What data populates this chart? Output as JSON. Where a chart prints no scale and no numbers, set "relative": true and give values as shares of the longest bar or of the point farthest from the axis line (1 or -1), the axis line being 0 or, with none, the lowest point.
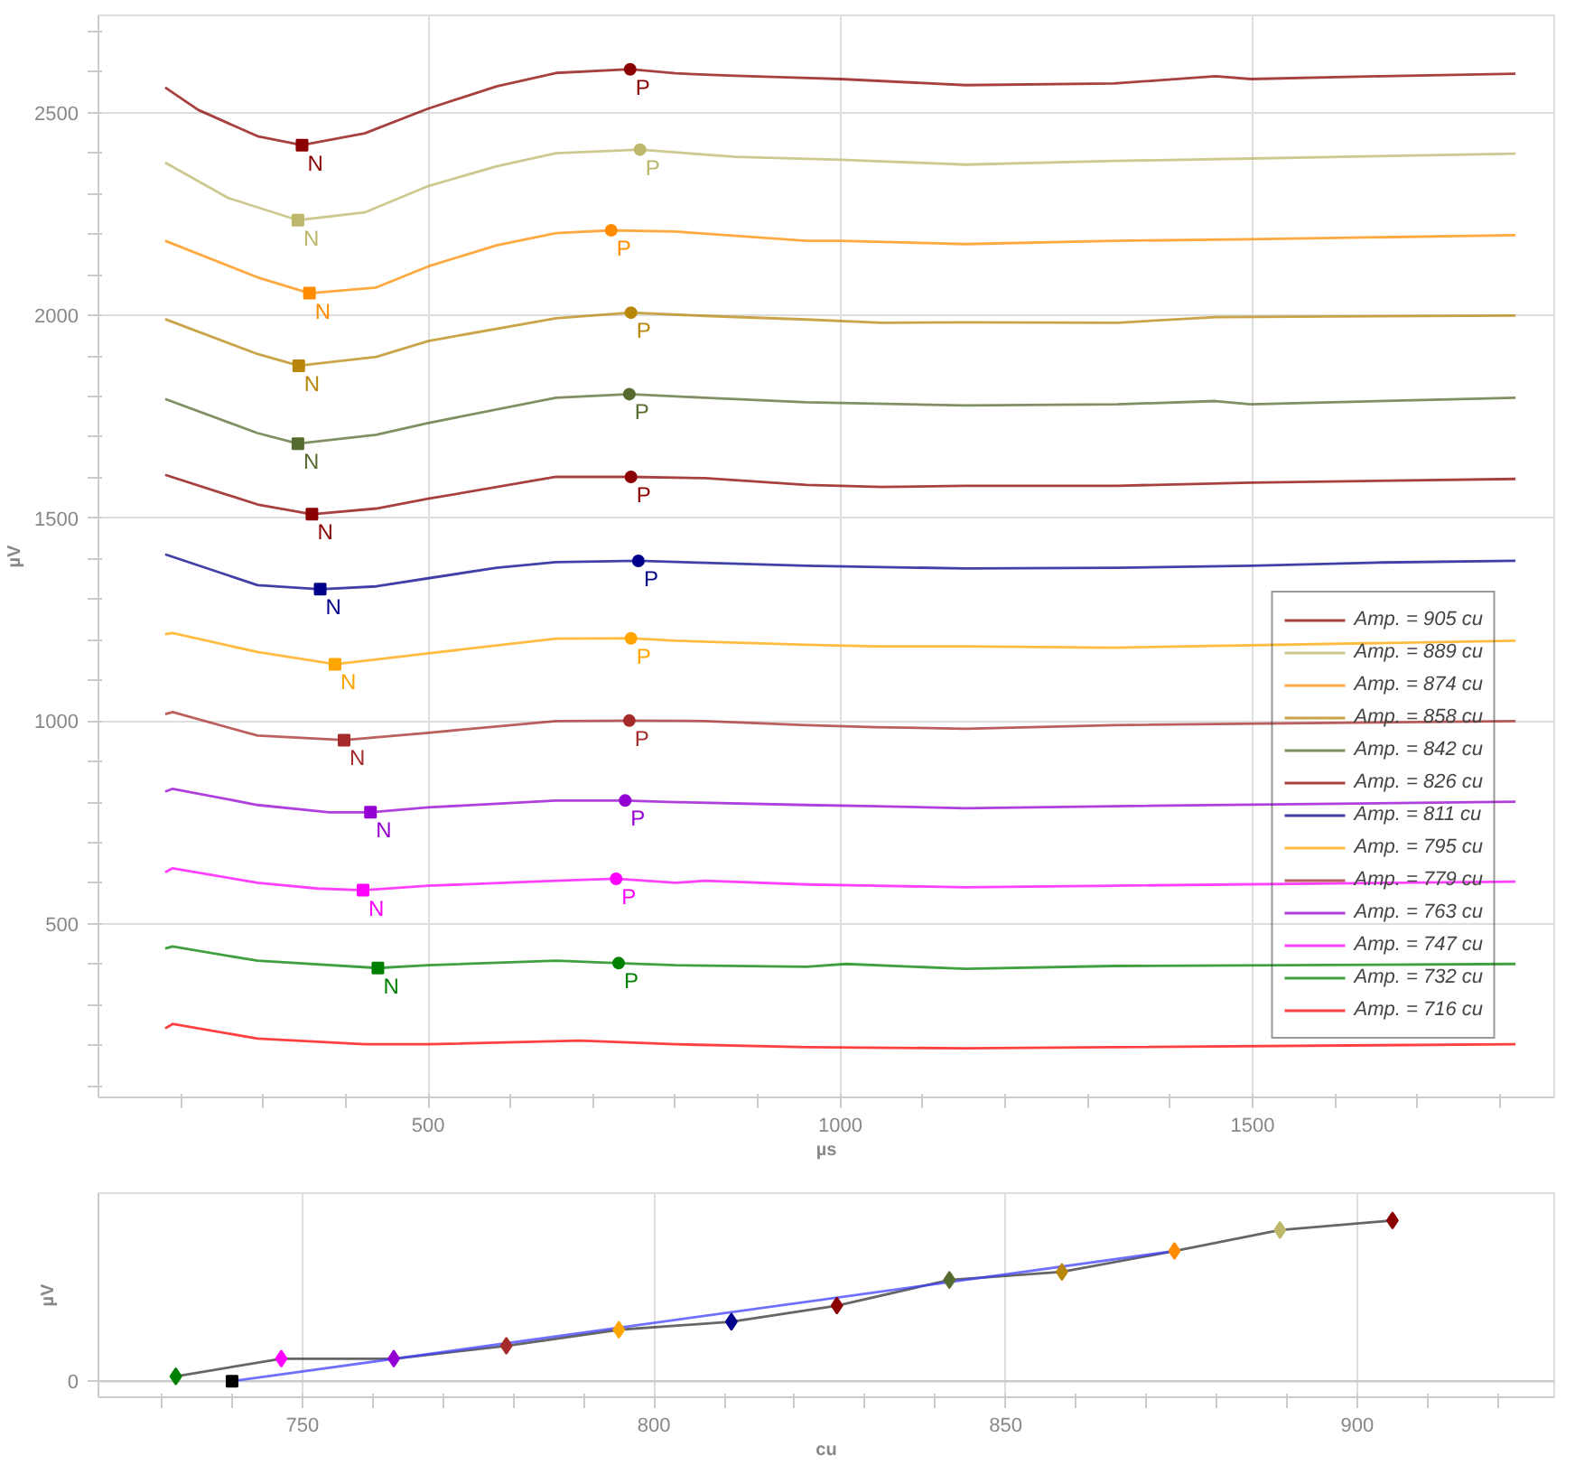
{
  "chart_data": [
    {
      "type": "line",
      "xlabel": "µs",
      "ylabel": "µV",
      "xlim": [
        100,
        1866
      ],
      "ylim": [
        72,
        2740
      ],
      "xticks": [
        {
          "value": 200,
          "label": null
        },
        {
          "value": 300,
          "label": null
        },
        {
          "value": 400,
          "label": null
        },
        500,
        {
          "value": 600,
          "label": null
        },
        {
          "value": 700,
          "label": null
        },
        {
          "value": 800,
          "label": null
        },
        {
          "value": 900,
          "label": null
        },
        1000,
        {
          "value": 1100,
          "label": null
        },
        {
          "value": 1200,
          "label": null
        },
        {
          "value": 1300,
          "label": null
        },
        {
          "value": 1400,
          "label": null
        },
        1500,
        {
          "value": 1600,
          "label": null
        },
        {
          "value": 1700,
          "label": null
        },
        {
          "value": 1800,
          "label": null
        }
      ],
      "yticks": [
        {
          "value": 100,
          "label": null
        },
        {
          "value": 200,
          "label": null
        },
        {
          "value": 300,
          "label": null
        },
        {
          "value": 400,
          "label": null
        },
        500,
        {
          "value": 600,
          "label": null
        },
        {
          "value": 700,
          "label": null
        },
        {
          "value": 800,
          "label": null
        },
        {
          "value": 900,
          "label": null
        },
        1000,
        {
          "value": 1100,
          "label": null
        },
        {
          "value": 1200,
          "label": null
        },
        {
          "value": 1300,
          "label": null
        },
        {
          "value": 1400,
          "label": null
        },
        1500,
        {
          "value": 1600,
          "label": null
        },
        {
          "value": 1700,
          "label": null
        },
        {
          "value": 1800,
          "label": null
        },
        {
          "value": 1900,
          "label": null
        },
        2000,
        {
          "value": 2100,
          "label": null
        },
        {
          "value": 2200,
          "label": null
        },
        {
          "value": 2300,
          "label": null
        },
        {
          "value": 2400,
          "label": null
        },
        2500,
        {
          "value": 2600,
          "label": null
        },
        {
          "value": 2700,
          "label": null
        }
      ],
      "grid": true,
      "legend": "bottom right",
      "marker": "none",
      "line_style": "solid",
      "series": [
        {
          "name": "Amp. = 905 cu",
          "color": "#8b0000",
          "x": [
            181,
            221,
            293,
            347,
            423,
            500,
            583,
            655,
            745,
            800,
            872,
            935,
            1000,
            1152,
            1332,
            1455,
            1498,
            1657,
            1819
          ],
          "values": [
            2562,
            2507,
            2442,
            2420,
            2449,
            2510,
            2565,
            2598,
            2607,
            2597,
            2591,
            2587,
            2583,
            2568,
            2572,
            2590,
            2583,
            2590,
            2596
          ]
        },
        {
          "name": "Amp. = 889 cu",
          "color": "#bdb76b",
          "x": [
            181,
            257,
            342,
            423,
            500,
            583,
            655,
            757,
            872,
            1000,
            1152,
            1332,
            1498,
            1819
          ],
          "values": [
            2377,
            2290,
            2235,
            2254,
            2319,
            2368,
            2400,
            2409,
            2391,
            2384,
            2372,
            2381,
            2387,
            2399
          ]
        },
        {
          "name": "Amp. = 874 cu",
          "color": "#ff8c00",
          "x": [
            181,
            293,
            356,
            437,
            500,
            583,
            655,
            722,
            800,
            959,
            1000,
            1152,
            1332,
            1498,
            1819
          ],
          "values": [
            2184,
            2094,
            2055,
            2069,
            2121,
            2173,
            2203,
            2210,
            2207,
            2184,
            2184,
            2176,
            2184,
            2188,
            2198
          ]
        },
        {
          "name": "Amp. = 858 cu",
          "color": "#b8860b",
          "x": [
            181,
            293,
            343,
            437,
            500,
            655,
            746,
            836,
            959,
            1050,
            1152,
            1336,
            1455,
            1819
          ],
          "values": [
            1991,
            1905,
            1876,
            1898,
            1937,
            1993,
            2007,
            1999,
            1990,
            1982,
            1983,
            1982,
            1996,
            2000
          ]
        },
        {
          "name": "Amp. = 842 cu",
          "color": "#556b2f",
          "x": [
            181,
            293,
            342,
            437,
            500,
            655,
            744,
            836,
            959,
            1152,
            1336,
            1455,
            1498,
            1819
          ],
          "values": [
            1794,
            1710,
            1684,
            1706,
            1735,
            1797,
            1806,
            1797,
            1786,
            1778,
            1781,
            1789,
            1781,
            1797
          ]
        },
        {
          "name": "Amp. = 826 cu",
          "color": "#8b0000",
          "x": [
            181,
            293,
            359,
            437,
            500,
            655,
            746,
            836,
            959,
            1050,
            1152,
            1336,
            1498,
            1819
          ],
          "values": [
            1607,
            1534,
            1510,
            1524,
            1548,
            1602,
            1602,
            1599,
            1582,
            1577,
            1580,
            1580,
            1588,
            1597
          ]
        },
        {
          "name": "Amp. = 811 cu",
          "color": "#00008b",
          "x": [
            181,
            293,
            369,
            437,
            500,
            583,
            655,
            755,
            836,
            959,
            1152,
            1336,
            1498,
            1657,
            1819
          ],
          "values": [
            1411,
            1335,
            1325,
            1332,
            1352,
            1378,
            1392,
            1395,
            1390,
            1383,
            1376,
            1378,
            1383,
            1391,
            1395
          ]
        },
        {
          "name": "Amp. = 795 cu",
          "color": "#ffa500",
          "x": [
            181,
            190,
            293,
            387,
            437,
            500,
            655,
            746,
            800,
            959,
            1043,
            1152,
            1332,
            1819
          ],
          "values": [
            1214,
            1217,
            1170,
            1140,
            1152,
            1167,
            1203,
            1204,
            1198,
            1188,
            1184,
            1184,
            1181,
            1198
          ]
        },
        {
          "name": "Amp. = 779 cu",
          "color": "#a52a2a",
          "x": [
            181,
            190,
            293,
            398,
            500,
            655,
            744,
            836,
            959,
            1043,
            1152,
            1332,
            1819
          ],
          "values": [
            1017,
            1022,
            964,
            953,
            971,
            1000,
            1001,
            1000,
            990,
            985,
            981,
            990,
            1000
          ]
        },
        {
          "name": "Amp. = 763 cu",
          "color": "#9400d3",
          "x": [
            181,
            190,
            293,
            380,
            430,
            500,
            655,
            739,
            800,
            959,
            1043,
            1152,
            1332,
            1819
          ],
          "values": [
            826,
            833,
            793,
            775,
            775,
            787,
            804,
            804,
            800,
            793,
            790,
            785,
            790,
            801
          ]
        },
        {
          "name": "Amp. = 747 cu",
          "color": "#ff00ff",
          "x": [
            181,
            190,
            293,
            366,
            421,
            500,
            655,
            728,
            800,
            836,
            959,
            1043,
            1152,
            1332,
            1819
          ],
          "values": [
            627,
            637,
            601,
            587,
            583,
            594,
            606,
            611,
            601,
            606,
            597,
            594,
            590,
            594,
            604
          ]
        },
        {
          "name": "Amp. = 732 cu",
          "color": "#008000",
          "x": [
            181,
            190,
            293,
            439,
            500,
            655,
            731,
            800,
            959,
            1007,
            1152,
            1332,
            1819
          ],
          "values": [
            439,
            444,
            409,
            391,
            398,
            409,
            403,
            398,
            394,
            401,
            389,
            396,
            401
          ]
        },
        {
          "name": "Amp. = 716 cu",
          "color": "#ff0000",
          "x": [
            181,
            190,
            293,
            423,
            500,
            684,
            800,
            959,
            1152,
            1332,
            1819
          ],
          "values": [
            242,
            253,
            217,
            203,
            203,
            212,
            203,
            196,
            193,
            196,
            203
          ]
        },
        {
          "type": "scatter",
          "marker": "square",
          "x": [
            347,
            342,
            356,
            343,
            342,
            359,
            369,
            387,
            398,
            430,
            421,
            439
          ],
          "values": [
            2420,
            2235,
            2055,
            1876,
            1684,
            1510,
            1325,
            1140,
            953,
            775,
            583,
            391
          ],
          "colors": [
            "#8b0000",
            "#bdb76b",
            "#ff8c00",
            "#b8860b",
            "#556b2f",
            "#8b0000",
            "#00008b",
            "#ffa500",
            "#a52a2a",
            "#9400d3",
            "#ff00ff",
            "#008000"
          ],
          "value_labels": [
            "N",
            "N",
            "N",
            "N",
            "N",
            "N",
            "N",
            "N",
            "N",
            "N",
            "N",
            "N"
          ]
        },
        {
          "type": "scatter",
          "marker": "circle",
          "x": [
            745,
            757,
            722,
            746,
            744,
            746,
            755,
            746,
            744,
            739,
            728,
            731
          ],
          "values": [
            2607,
            2409,
            2210,
            2007,
            1806,
            1602,
            1395,
            1204,
            1001,
            804,
            611,
            403
          ],
          "colors": [
            "#8b0000",
            "#bdb76b",
            "#ff8c00",
            "#b8860b",
            "#556b2f",
            "#8b0000",
            "#00008b",
            "#ffa500",
            "#a52a2a",
            "#9400d3",
            "#ff00ff",
            "#008000"
          ],
          "value_labels": [
            "P",
            "P",
            "P",
            "P",
            "P",
            "P",
            "P",
            "P",
            "P",
            "P",
            "P",
            "P"
          ]
        }
      ]
    },
    {
      "type": "line",
      "xlabel": "cu",
      "ylabel": "µV",
      "relative": true,
      "xlim": [
        721,
        928
      ],
      "xticks": [
        {
          "value": 730,
          "label": null
        },
        {
          "value": 740,
          "label": null
        },
        750,
        {
          "value": 760,
          "label": null
        },
        {
          "value": 770,
          "label": null
        },
        {
          "value": 780,
          "label": null
        },
        {
          "value": 790,
          "label": null
        },
        800,
        {
          "value": 810,
          "label": null
        },
        {
          "value": 820,
          "label": null
        },
        {
          "value": 830,
          "label": null
        },
        {
          "value": 840,
          "label": null
        },
        850,
        {
          "value": 860,
          "label": null
        },
        {
          "value": 870,
          "label": null
        },
        {
          "value": 880,
          "label": null
        },
        {
          "value": 890,
          "label": null
        },
        900,
        {
          "value": 910,
          "label": null
        },
        {
          "value": 920,
          "label": null
        }
      ],
      "ref_lines": [
        {
          "axis": "y",
          "value": 0,
          "label": "0"
        }
      ],
      "grid": true,
      "marker": "none",
      "line_style": "solid",
      "series": [
        {
          "color": "#333333",
          "x": [
            732,
            747,
            763,
            779,
            795,
            811,
            826,
            842,
            858,
            874,
            889,
            905
          ],
          "values": [
            0.03,
            0.14,
            0.14,
            0.22,
            0.32,
            0.37,
            0.47,
            0.63,
            0.68,
            0.81,
            0.94,
            1
          ]
        },
        {
          "color": "#4040ff",
          "x": [
            740,
            874
          ],
          "values": [
            0,
            0.81
          ]
        },
        {
          "type": "scatter",
          "marker": "diamond",
          "x": [
            732,
            747,
            763,
            779,
            795,
            811,
            826,
            842,
            858,
            874,
            889,
            905
          ],
          "values": [
            0.03,
            0.14,
            0.14,
            0.22,
            0.32,
            0.37,
            0.47,
            0.63,
            0.68,
            0.81,
            0.94,
            1
          ],
          "colors": [
            "#008000",
            "#ff00ff",
            "#9400d3",
            "#a52a2a",
            "#ffa500",
            "#00008b",
            "#8b0000",
            "#556b2f",
            "#b8860b",
            "#ff8c00",
            "#bdb76b",
            "#8b0000"
          ]
        },
        {
          "type": "scatter",
          "marker": "square",
          "x": [
            740
          ],
          "values": [
            0
          ],
          "colors": [
            "#000000"
          ]
        }
      ]
    }
  ]
}
